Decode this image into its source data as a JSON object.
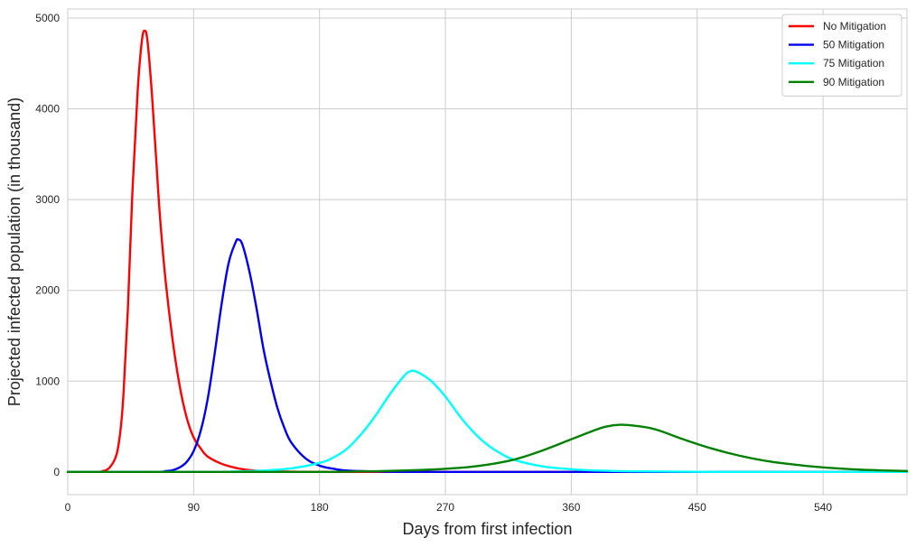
{
  "chart_data": {
    "type": "line",
    "title": "",
    "xlabel": "Days from first infection",
    "ylabel": "Projected infected population (in thousand)",
    "xlim": [
      0,
      600
    ],
    "ylim": [
      -250,
      5100
    ],
    "xticks": [
      0,
      90,
      180,
      270,
      360,
      450,
      540
    ],
    "yticks": [
      0,
      1000,
      2000,
      3000,
      4000,
      5000
    ],
    "grid": true,
    "legend_position": "top-right",
    "series": [
      {
        "name": "No Mitigation",
        "color": "#ff0000",
        "x": [
          0,
          20,
          25,
          30,
          35,
          38,
          40,
          43,
          46,
          50,
          53,
          55,
          57,
          60,
          63,
          66,
          70,
          75,
          80,
          85,
          90,
          95,
          100,
          110,
          120,
          130,
          140,
          160,
          180,
          220,
          300,
          400,
          500,
          600
        ],
        "y": [
          0,
          0,
          10,
          50,
          200,
          500,
          900,
          1800,
          3000,
          4200,
          4750,
          4860,
          4750,
          4200,
          3500,
          2800,
          2100,
          1450,
          950,
          600,
          380,
          260,
          170,
          90,
          45,
          20,
          10,
          3,
          0,
          0,
          0,
          0,
          0,
          0
        ]
      },
      {
        "name": "50 Mitigation",
        "color": "#0000ee",
        "x": [
          0,
          60,
          70,
          75,
          80,
          85,
          90,
          95,
          100,
          105,
          110,
          115,
          120,
          122,
          125,
          130,
          135,
          140,
          145,
          150,
          155,
          160,
          170,
          180,
          190,
          200,
          220,
          240,
          270,
          300,
          400,
          500,
          600
        ],
        "y": [
          0,
          0,
          10,
          20,
          50,
          110,
          230,
          450,
          800,
          1300,
          1850,
          2300,
          2530,
          2560,
          2500,
          2200,
          1800,
          1350,
          1000,
          700,
          480,
          320,
          150,
          70,
          35,
          15,
          5,
          0,
          0,
          0,
          0,
          0,
          0
        ]
      },
      {
        "name": "75 Mitigation",
        "color": "#00ffff",
        "x": [
          0,
          100,
          120,
          140,
          160,
          180,
          190,
          200,
          210,
          220,
          230,
          240,
          245,
          250,
          260,
          270,
          280,
          290,
          300,
          310,
          320,
          340,
          360,
          380,
          400,
          450,
          500,
          600
        ],
        "y": [
          0,
          0,
          5,
          15,
          40,
          100,
          160,
          260,
          420,
          620,
          850,
          1050,
          1110,
          1100,
          1000,
          830,
          620,
          440,
          300,
          200,
          130,
          60,
          30,
          15,
          8,
          2,
          0,
          0
        ]
      },
      {
        "name": "90 Mitigation",
        "color": "#008000",
        "x": [
          0,
          150,
          200,
          250,
          280,
          300,
          320,
          340,
          360,
          375,
          385,
          395,
          405,
          420,
          440,
          460,
          480,
          500,
          520,
          540,
          560,
          580,
          600
        ],
        "y": [
          0,
          0,
          3,
          20,
          45,
          80,
          140,
          240,
          360,
          450,
          500,
          520,
          510,
          470,
          360,
          260,
          180,
          120,
          80,
          50,
          30,
          18,
          10
        ]
      }
    ]
  }
}
